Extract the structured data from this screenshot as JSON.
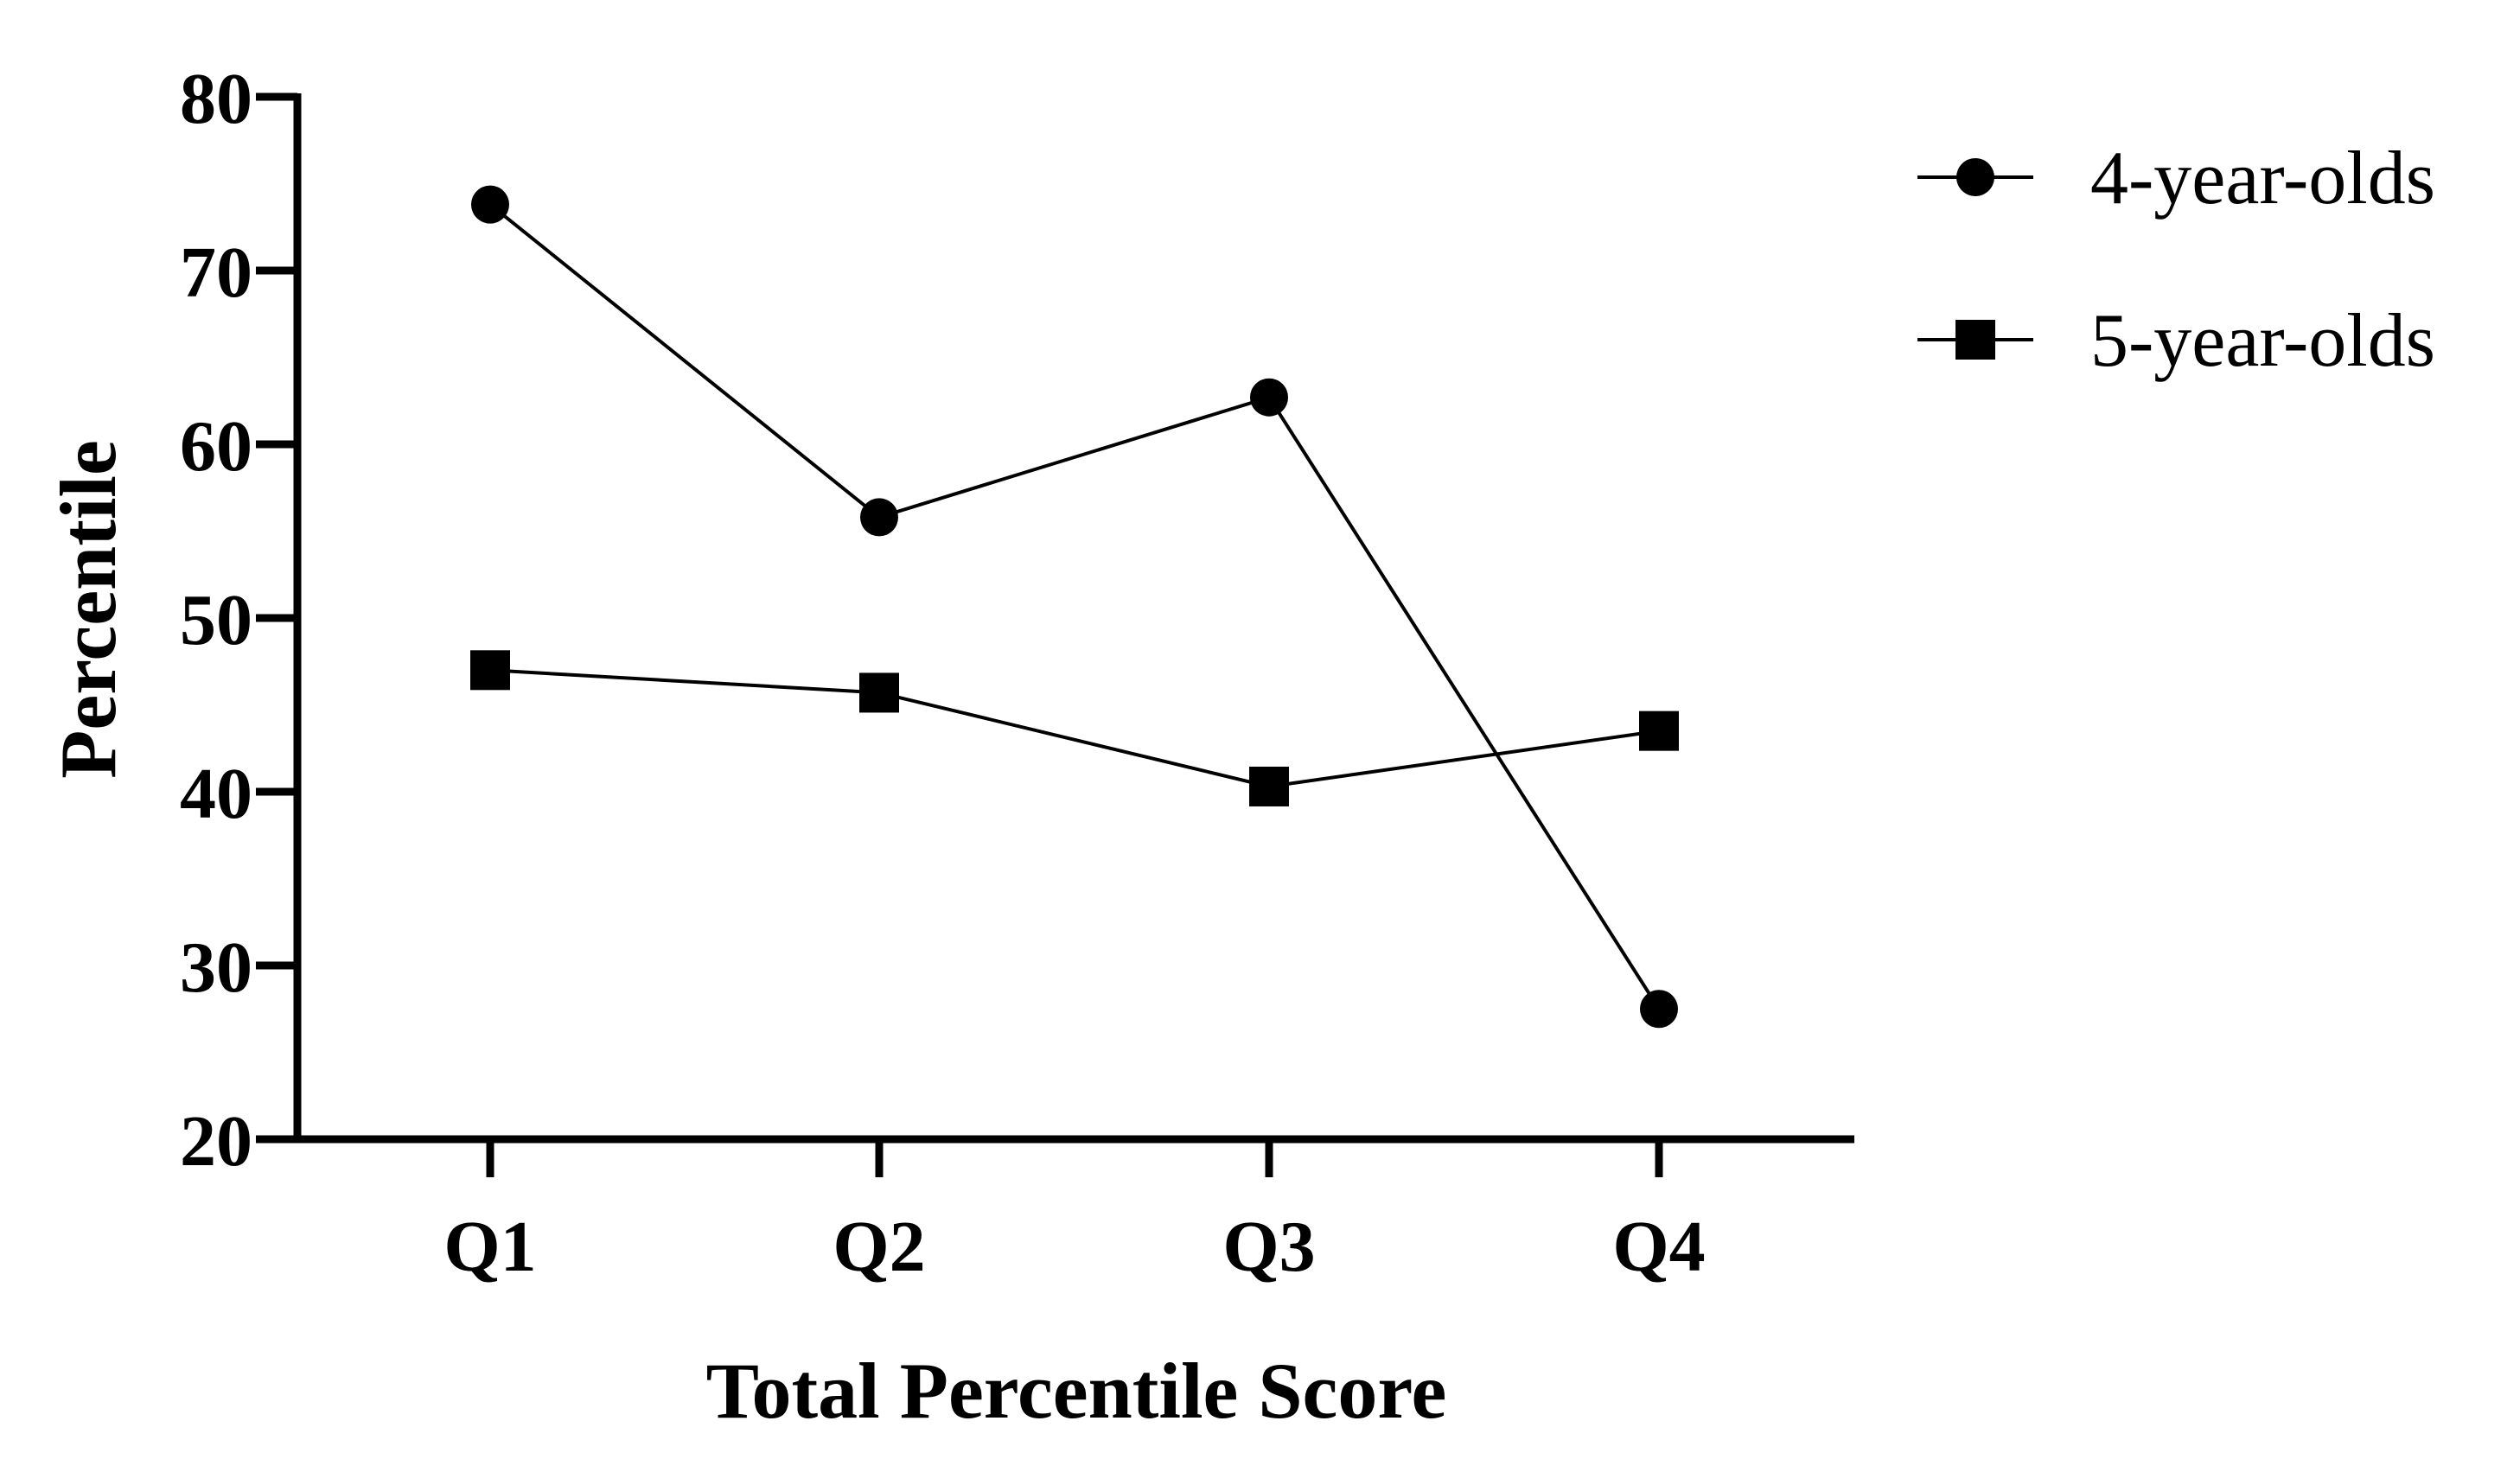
{
  "chart_data": {
    "type": "line",
    "title": "",
    "xlabel": "Total Percentile Score",
    "ylabel": "Percentile",
    "categories": [
      "Q1",
      "Q2",
      "Q3",
      "Q4"
    ],
    "ylim": [
      20,
      80
    ],
    "yticks": [
      "20",
      "30",
      "40",
      "50",
      "60",
      "70",
      "80"
    ],
    "grid": false,
    "legend_position": "top-right",
    "series": [
      {
        "name": "4-year-olds",
        "marker": "circle",
        "color": "#000000",
        "values": [
          73.8,
          55.8,
          62.7,
          27.5
        ]
      },
      {
        "name": "5-year-olds",
        "marker": "square",
        "color": "#000000",
        "values": [
          47.0,
          45.7,
          40.3,
          43.5
        ]
      }
    ]
  }
}
